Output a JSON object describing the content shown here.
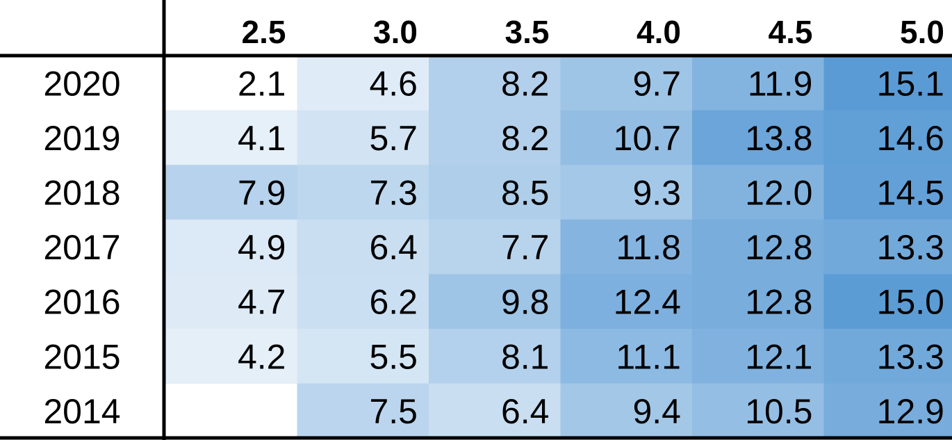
{
  "chart_data": {
    "type": "heatmap",
    "columns": [
      "2.5",
      "3.0",
      "3.5",
      "4.0",
      "4.5",
      "5.0"
    ],
    "rows": [
      "2020",
      "2019",
      "2018",
      "2017",
      "2016",
      "2015",
      "2014"
    ],
    "values": [
      [
        "2.1",
        "4.6",
        "8.2",
        "9.7",
        "11.9",
        "15.1"
      ],
      [
        "4.1",
        "5.7",
        "8.2",
        "10.7",
        "13.8",
        "14.6"
      ],
      [
        "7.9",
        "7.3",
        "8.5",
        "9.3",
        "12.0",
        "14.5"
      ],
      [
        "4.9",
        "6.4",
        "7.7",
        "11.8",
        "12.8",
        "13.3"
      ],
      [
        "4.7",
        "6.2",
        "9.8",
        "12.4",
        "12.8",
        "15.0"
      ],
      [
        "4.2",
        "5.5",
        "8.1",
        "11.1",
        "12.1",
        "13.3"
      ],
      [
        null,
        "7.5",
        "6.4",
        "9.4",
        "10.5",
        "12.9"
      ]
    ],
    "color_scale": {
      "low": "#ffffff",
      "high": "#5b9bd5",
      "min": 2.1,
      "max": 15.1
    }
  }
}
